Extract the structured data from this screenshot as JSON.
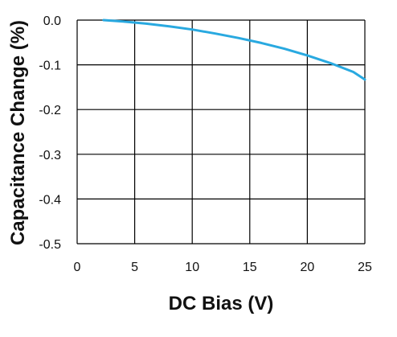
{
  "chart_data": {
    "type": "line",
    "title": "",
    "xlabel": "DC Bias (V)",
    "ylabel": "Capacitance Change (%)",
    "xlim": [
      0,
      25
    ],
    "ylim": [
      -0.5,
      0.0
    ],
    "x_ticks": [
      0,
      5,
      10,
      15,
      20,
      25
    ],
    "x_tick_labels": [
      "0",
      "5",
      "10",
      "15",
      "20",
      "25"
    ],
    "y_ticks": [
      0.0,
      -0.1,
      -0.2,
      -0.3,
      -0.4,
      -0.5
    ],
    "y_tick_labels": [
      "0.0",
      "-0.1",
      "-0.2",
      "-0.3",
      "-0.4",
      "-0.5"
    ],
    "grid": true,
    "legend": "none",
    "colors": {
      "series": "#29a9e0",
      "grid": "#000000",
      "text": "#111111"
    },
    "series": [
      {
        "x": [
          2.3,
          4,
          6,
          8,
          10,
          12,
          14,
          16,
          18,
          20,
          22,
          24,
          25
        ],
        "y": [
          0.0,
          -0.003,
          -0.008,
          -0.014,
          -0.021,
          -0.03,
          -0.04,
          -0.051,
          -0.064,
          -0.079,
          -0.096,
          -0.116,
          -0.133
        ]
      }
    ]
  }
}
